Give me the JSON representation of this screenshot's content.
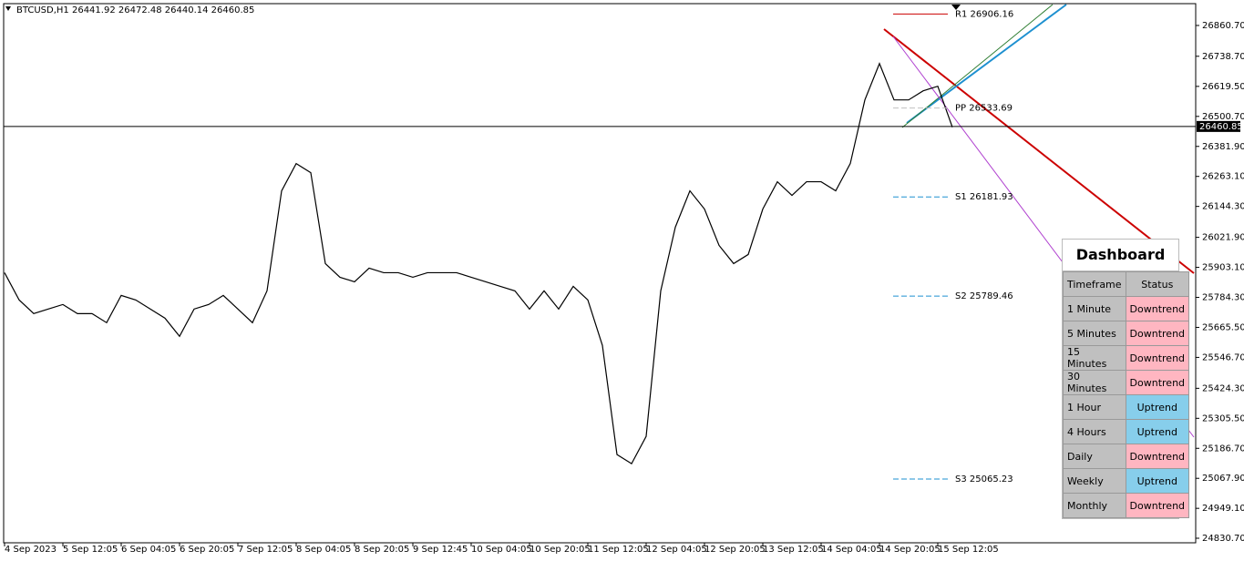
{
  "header": "BTCUSD,H1  26441.92 26472.48 26440.14 26460.85",
  "chart_data": {
    "type": "line",
    "color": "#000000",
    "values": [
      25882,
      25774,
      25720,
      25738,
      25756,
      25720,
      25720,
      25684,
      25792,
      25774,
      25738,
      25702,
      25630,
      25738,
      25756,
      25792,
      25738,
      25684,
      25810,
      26206,
      26314,
      26278,
      25918,
      25864,
      25846,
      25900,
      25882,
      25882,
      25864,
      25882,
      25882,
      25882,
      25864,
      25846,
      25828,
      25810,
      25738,
      25810,
      25738,
      25828,
      25774,
      25594,
      25162,
      25126,
      25234,
      25810,
      26062,
      26206,
      26134,
      25990,
      25918,
      25954,
      26134,
      26242,
      26188,
      26242,
      26242,
      26206,
      26314,
      26566,
      26710,
      26566,
      26566,
      26602,
      26620,
      26458
    ],
    "ylim": [
      24805.5,
      26961.5
    ],
    "yticks": [
      {
        "value": 26860.7,
        "label": "26860.70"
      },
      {
        "value": 26738.7,
        "label": "26738.70"
      },
      {
        "value": 26619.5,
        "label": "26619.50"
      },
      {
        "value": 26500.7,
        "label": "26500.70"
      },
      {
        "value": 26381.9,
        "label": "26381.90"
      },
      {
        "value": 26263.1,
        "label": "26263.10"
      },
      {
        "value": 26144.3,
        "label": "26144.30"
      },
      {
        "value": 26021.9,
        "label": "26021.90"
      },
      {
        "value": 25903.1,
        "label": "25903.10"
      },
      {
        "value": 25784.3,
        "label": "25784.30"
      },
      {
        "value": 25665.5,
        "label": "25665.50"
      },
      {
        "value": 25546.7,
        "label": "25546.70"
      },
      {
        "value": 25424.3,
        "label": "25424.30"
      },
      {
        "value": 25305.5,
        "label": "25305.50"
      },
      {
        "value": 25186.7,
        "label": "25186.70"
      },
      {
        "value": 25067.9,
        "label": "25067.90"
      },
      {
        "value": 24949.1,
        "label": "24949.10"
      },
      {
        "value": 24830.7,
        "label": "24830.70"
      }
    ],
    "current_price": {
      "value": 26460.85,
      "label": "26460.85"
    },
    "pivots": [
      {
        "label": "R1 26906.16",
        "value": 26906.16,
        "color": "#cc0000"
      },
      {
        "label": "PP 26533.69",
        "value": 26533.69,
        "color": "#c0c0c0"
      },
      {
        "label": "S1 26181.93",
        "value": 26181.93,
        "color": "#1e90d0"
      },
      {
        "label": "S2 25789.46",
        "value": 25789.46,
        "color": "#1e90d0"
      },
      {
        "label": "S3 25065.23",
        "value": 25065.23,
        "color": "#1e90d0"
      }
    ]
  },
  "time_axis": [
    "4 Sep 2023",
    "5 Sep 12:05",
    "6 Sep 04:05",
    "6 Sep 20:05",
    "7 Sep 12:05",
    "8 Sep 04:05",
    "8 Sep 20:05",
    "9 Sep 12:45",
    "10 Sep 04:05",
    "10 Sep 20:05",
    "11 Sep 12:05",
    "12 Sep 04:05",
    "12 Sep 20:05",
    "13 Sep 12:05",
    "14 Sep 04:05",
    "14 Sep 20:05",
    "15 Sep 12:05"
  ],
  "dashboard": {
    "title": "Dashboard",
    "headers": [
      "Timeframe",
      "Status"
    ],
    "rows": [
      [
        "1 Minute",
        "Downtrend",
        "#ffb6c1"
      ],
      [
        "5 Minutes",
        "Downtrend",
        "#ffb6c1"
      ],
      [
        "15 Minutes",
        "Downtrend",
        "#ffb6c1"
      ],
      [
        "30 Minutes",
        "Downtrend",
        "#ffb6c1"
      ],
      [
        "1 Hour",
        "Uptrend",
        "#87ceeb"
      ],
      [
        "4 Hours",
        "Uptrend",
        "#87ceeb"
      ],
      [
        "Daily",
        "Downtrend",
        "#ffb6c1"
      ],
      [
        "Weekly",
        "Uptrend",
        "#87ceeb"
      ],
      [
        "Monthly",
        "Downtrend",
        "#ffb6c1"
      ]
    ]
  }
}
